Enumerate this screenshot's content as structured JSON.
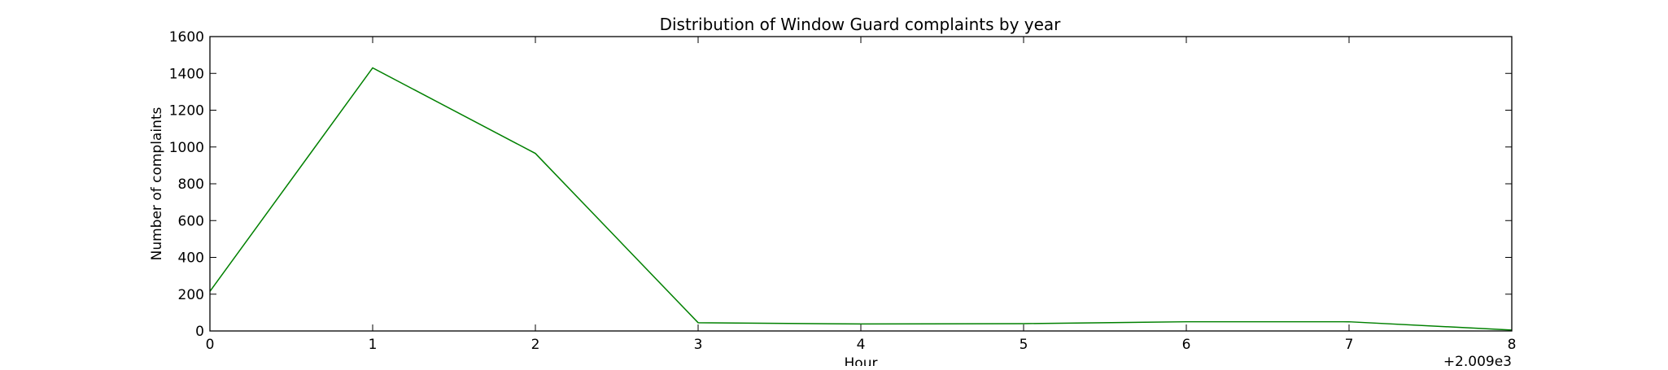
{
  "chart_data": {
    "type": "line",
    "title": "Distribution of  Window Guard complaints by year",
    "xlabel": "Hour",
    "ylabel": "Number of complaints",
    "x_offset_label": "+2.009e3",
    "x": [
      0,
      1,
      2,
      3,
      4,
      5,
      6,
      7,
      8
    ],
    "xlim": [
      0,
      8
    ],
    "ylim": [
      0,
      1600
    ],
    "x_ticks": [
      0,
      1,
      2,
      3,
      4,
      5,
      6,
      7,
      8
    ],
    "y_ticks": [
      0,
      200,
      400,
      600,
      800,
      1000,
      1200,
      1400,
      1600
    ],
    "grid": false,
    "series": [
      {
        "color": "#008000",
        "values": [
          215,
          1430,
          965,
          45,
          38,
          40,
          50,
          50,
          5
        ]
      }
    ]
  }
}
